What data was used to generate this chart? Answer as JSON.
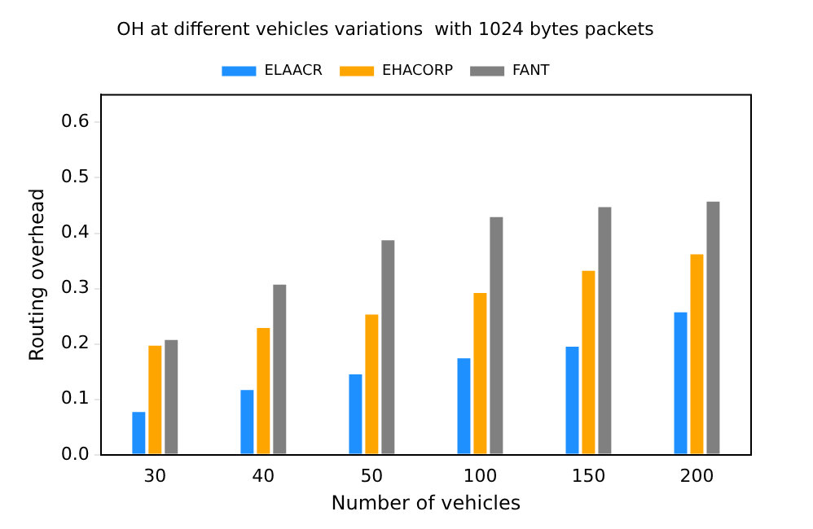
{
  "chart_data": {
    "type": "bar",
    "title": "OH at different vehicles variations  with 1024 bytes packets",
    "xlabel": "Number of vehicles",
    "ylabel": "Routing overhead",
    "categories": [
      "30",
      "40",
      "50",
      "100",
      "150",
      "200"
    ],
    "series": [
      {
        "name": "ELAACR",
        "color": "#1e90ff",
        "values": [
          0.08,
          0.12,
          0.148,
          0.177,
          0.198,
          0.26
        ]
      },
      {
        "name": "EHACORP",
        "color": "#ffa500",
        "values": [
          0.2,
          0.232,
          0.256,
          0.295,
          0.335,
          0.365
        ]
      },
      {
        "name": "FANT",
        "color": "#808080",
        "values": [
          0.21,
          0.31,
          0.39,
          0.432,
          0.45,
          0.46
        ]
      }
    ],
    "ylim": [
      0,
      0.65
    ],
    "yticks": [
      {
        "value": 0,
        "label": "0.0"
      },
      {
        "value": 0.1,
        "label": "0.1"
      },
      {
        "value": 0.2,
        "label": "0.2"
      },
      {
        "value": 0.3,
        "label": "0.3"
      },
      {
        "value": 0.4,
        "label": "0.4"
      },
      {
        "value": 0.5,
        "label": "0.5"
      },
      {
        "value": 0.6,
        "label": "0.6"
      }
    ],
    "grid": false,
    "legend": "top"
  }
}
